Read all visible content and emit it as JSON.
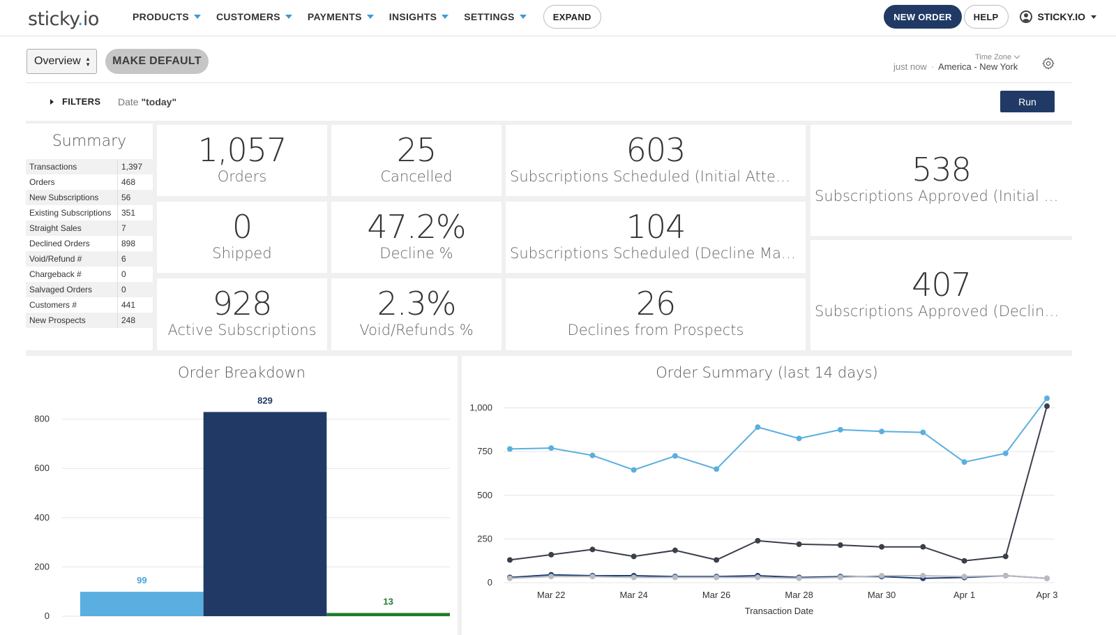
{
  "header": {
    "logo_main": "sticky",
    "logo_dot": ".",
    "logo_tail": "io",
    "nav": [
      "PRODUCTS",
      "CUSTOMERS",
      "PAYMENTS",
      "INSIGHTS",
      "SETTINGS"
    ],
    "expand": "EXPAND",
    "new_order": "NEW ORDER",
    "help": "HELP",
    "user": "STICKY.IO"
  },
  "toolbar": {
    "view": "Overview",
    "make_default": "MAKE DEFAULT",
    "tz_label": "Time Zone",
    "updated": "just now",
    "sep": "·",
    "timezone": "America - New York",
    "filters": "FILTERS",
    "date_label": "Date",
    "date_value": "\"today\"",
    "run": "Run"
  },
  "summary": {
    "title": "Summary",
    "rows": [
      {
        "label": "Transactions",
        "value": "1,397"
      },
      {
        "label": "Orders",
        "value": "468"
      },
      {
        "label": "New Subscriptions",
        "value": "56"
      },
      {
        "label": "Existing Subscriptions",
        "value": "351"
      },
      {
        "label": "Straight Sales",
        "value": "7"
      },
      {
        "label": "Declined Orders",
        "value": "898"
      },
      {
        "label": "Void/Refund #",
        "value": "6"
      },
      {
        "label": "Chargeback #",
        "value": "0"
      },
      {
        "label": "Salvaged Orders",
        "value": "0"
      },
      {
        "label": "Customers #",
        "value": "441"
      },
      {
        "label": "New Prospects",
        "value": "248"
      }
    ]
  },
  "stats": [
    {
      "value": "1,057",
      "label": "Orders"
    },
    {
      "value": "25",
      "label": "Cancelled"
    },
    {
      "value": "603",
      "label": "Subscriptions Scheduled (Initial Attempt)"
    },
    {
      "value": "0",
      "label": "Shipped"
    },
    {
      "value": "47.2%",
      "label": "Decline %"
    },
    {
      "value": "104",
      "label": "Subscriptions Scheduled (Decline Manag..."
    },
    {
      "value": "928",
      "label": "Active Subscriptions"
    },
    {
      "value": "2.3%",
      "label": "Void/Refunds %"
    },
    {
      "value": "26",
      "label": "Declines from Prospects"
    },
    {
      "value": "538",
      "label": "Subscriptions Approved (Initial Atte..."
    },
    {
      "value": "407",
      "label": "Subscriptions Approved (Decline M..."
    }
  ],
  "chart_data": [
    {
      "type": "bar",
      "title": "Order Breakdown",
      "ylim": [
        0,
        850
      ],
      "yticks": [
        0,
        200,
        400,
        600,
        800
      ],
      "values": [
        99,
        829,
        13
      ],
      "data_labels": [
        "99",
        "829",
        "13"
      ],
      "colors": [
        "#5aaee0",
        "#203a65",
        "#1f7a2f"
      ],
      "label_colors": [
        "#4aa3d8",
        "#203a65",
        "#1f7a2f"
      ],
      "grid": true
    },
    {
      "type": "line",
      "title": "Order Summary (last 14 days)",
      "xlabel": "Transaction Date",
      "x": [
        "Mar 21",
        "Mar 22",
        "Mar 23",
        "Mar 24",
        "Mar 25",
        "Mar 26",
        "Mar 27",
        "Mar 28",
        "Mar 29",
        "Mar 30",
        "Mar 31",
        "Apr 1",
        "Apr 2",
        "Apr 3"
      ],
      "xtick_labels": [
        "Mar 22",
        "Mar 24",
        "Mar 26",
        "Mar 28",
        "Mar 30",
        "Apr 1",
        "Apr 3"
      ],
      "yticks": [
        0,
        250,
        500,
        750,
        1000
      ],
      "ytick_labels": [
        "0",
        "250",
        "500",
        "750",
        "1,000"
      ],
      "ylim": [
        0,
        1050
      ],
      "grid": true,
      "series": [
        {
          "color": "#5aaee0",
          "values": [
            765,
            770,
            728,
            645,
            725,
            650,
            890,
            825,
            875,
            865,
            860,
            690,
            740,
            1055
          ]
        },
        {
          "color": "#3a3f4a",
          "values": [
            130,
            160,
            190,
            150,
            185,
            130,
            240,
            220,
            215,
            205,
            205,
            125,
            150,
            1010
          ]
        },
        {
          "color": "#1f3e75",
          "values": [
            30,
            45,
            40,
            40,
            35,
            35,
            40,
            30,
            35,
            35,
            25,
            30,
            40,
            25
          ]
        },
        {
          "color": "#b8bcc2",
          "values": [
            25,
            35,
            35,
            30,
            30,
            30,
            30,
            25,
            30,
            40,
            40,
            35,
            40,
            25
          ]
        }
      ]
    }
  ]
}
